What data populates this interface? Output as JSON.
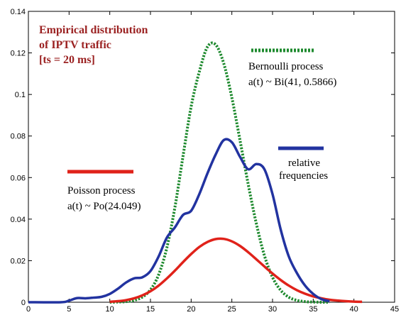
{
  "chart_data": {
    "type": "line",
    "title_lines": [
      "Empirical distribution",
      "of IPTV traffic",
      "[ts = 20 ms]"
    ],
    "xlim": [
      0,
      45
    ],
    "ylim": [
      0,
      0.14
    ],
    "x_ticks": [
      0,
      5,
      10,
      15,
      20,
      25,
      30,
      35,
      40,
      45
    ],
    "y_ticks": [
      0,
      0.02,
      0.04,
      0.06,
      0.08,
      0.1,
      0.12,
      0.14
    ],
    "grid": false,
    "series": [
      {
        "legend_id": "bernoulli",
        "color": "#1e8a2e",
        "dash": "dotted",
        "x": [
          10,
          11,
          12,
          13,
          14,
          15,
          16,
          17,
          18,
          19,
          20,
          21,
          22,
          23,
          24,
          25,
          26,
          27,
          28,
          29,
          30,
          31,
          32,
          33,
          34,
          35,
          36,
          37
        ],
        "values": [
          0.0,
          0.0001,
          0.0003,
          0.0009,
          0.0025,
          0.006,
          0.0132,
          0.026,
          0.0456,
          0.0703,
          0.0942,
          0.1109,
          0.1229,
          0.124,
          0.115,
          0.0985,
          0.078,
          0.057,
          0.038,
          0.0225,
          0.012,
          0.0058,
          0.0024,
          0.0009,
          0.0003,
          0.0001,
          0.0,
          0.0
        ]
      },
      {
        "legend_id": "poisson",
        "color": "#e0221a",
        "dash": "solid",
        "x": [
          10,
          11,
          12,
          13,
          14,
          15,
          16,
          17,
          18,
          19,
          20,
          21,
          22,
          23,
          24,
          25,
          26,
          27,
          28,
          29,
          30,
          31,
          32,
          33,
          34,
          35,
          36,
          37,
          38,
          39,
          40,
          41
        ],
        "values": [
          0.0002,
          0.0005,
          0.001,
          0.0019,
          0.0033,
          0.0053,
          0.008,
          0.0114,
          0.0152,
          0.0193,
          0.0232,
          0.0266,
          0.029,
          0.0304,
          0.0305,
          0.0293,
          0.0271,
          0.0241,
          0.0207,
          0.0172,
          0.0138,
          0.0107,
          0.008,
          0.0058,
          0.0041,
          0.0028,
          0.0019,
          0.0012,
          0.0008,
          0.0005,
          0.0003,
          0.0002
        ]
      },
      {
        "legend_id": "relative",
        "color": "#2233a0",
        "dash": "solid",
        "x": [
          0,
          4,
          5,
          6,
          7,
          8,
          9,
          10,
          11,
          12,
          13,
          14,
          15,
          16,
          17,
          18,
          19,
          20,
          21,
          22,
          23,
          24,
          25,
          26,
          27,
          28,
          29,
          30,
          31,
          32,
          33,
          34,
          35,
          36,
          37
        ],
        "values": [
          0.0,
          0.0,
          0.0008,
          0.002,
          0.0019,
          0.0022,
          0.0026,
          0.004,
          0.0065,
          0.0095,
          0.0115,
          0.012,
          0.015,
          0.022,
          0.031,
          0.036,
          0.042,
          0.044,
          0.052,
          0.062,
          0.071,
          0.078,
          0.077,
          0.07,
          0.064,
          0.0665,
          0.064,
          0.052,
          0.035,
          0.022,
          0.014,
          0.008,
          0.004,
          0.0015,
          0.0005
        ]
      }
    ],
    "annotations": {
      "bernoulli": [
        "Bernoulli process",
        "a(t) ~ Bi(41, 0.5866)"
      ],
      "poisson": [
        "Poisson process",
        "a(t) ~ Po(24.049)"
      ],
      "relative": [
        "relative",
        "frequencies"
      ]
    }
  }
}
